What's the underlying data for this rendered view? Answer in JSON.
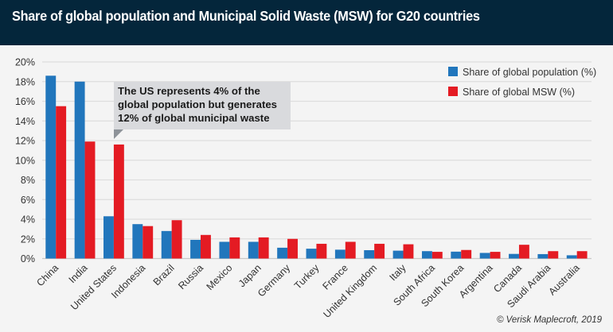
{
  "header": {
    "title": "Share of global population and Municipal Solid Waste (MSW) for G20 countries"
  },
  "colors": {
    "header_bg": "#04263b",
    "population": "#2176bc",
    "msw": "#e41b23"
  },
  "annotation": {
    "text": "The US represents 4% of the\nglobal population but generates\n12% of global municipal waste"
  },
  "credit": "© Verisk Maplecroft, 2019",
  "chart_data": {
    "type": "bar",
    "title": "Share of global population and Municipal Solid Waste (MSW) for G20 countries",
    "xlabel": "",
    "ylabel": "",
    "ylim": [
      0,
      20
    ],
    "yticks": [
      0,
      2,
      4,
      6,
      8,
      10,
      12,
      14,
      16,
      18,
      20
    ],
    "ytick_labels": [
      "0%",
      "2%",
      "4%",
      "6%",
      "8%",
      "10%",
      "12%",
      "14%",
      "16%",
      "18%",
      "20%"
    ],
    "grid": true,
    "legend_position": "top-right",
    "categories": [
      "China",
      "India",
      "United States",
      "Indonesia",
      "Brazil",
      "Russia",
      "Mexico",
      "Japan",
      "Germany",
      "Turkey",
      "France",
      "United Kingdom",
      "Italy",
      "South Africa",
      "South Korea",
      "Argentina",
      "Canada",
      "Saudi Arabia",
      "Australia"
    ],
    "series": [
      {
        "name": "Share of global population (%)",
        "color": "#2176bc",
        "values": [
          18.6,
          18.0,
          4.3,
          3.5,
          2.8,
          1.9,
          1.7,
          1.7,
          1.1,
          1.0,
          0.9,
          0.85,
          0.8,
          0.75,
          0.7,
          0.57,
          0.47,
          0.45,
          0.33
        ]
      },
      {
        "name": "Share of global MSW (%)",
        "color": "#e41b23",
        "values": [
          15.5,
          11.9,
          11.6,
          3.3,
          3.9,
          2.4,
          2.15,
          2.15,
          2.0,
          1.5,
          1.7,
          1.5,
          1.45,
          0.68,
          0.87,
          0.68,
          1.4,
          0.75,
          0.75
        ]
      }
    ],
    "annotations": [
      "The US represents 4% of the global population but generates 12% of global municipal waste"
    ]
  }
}
